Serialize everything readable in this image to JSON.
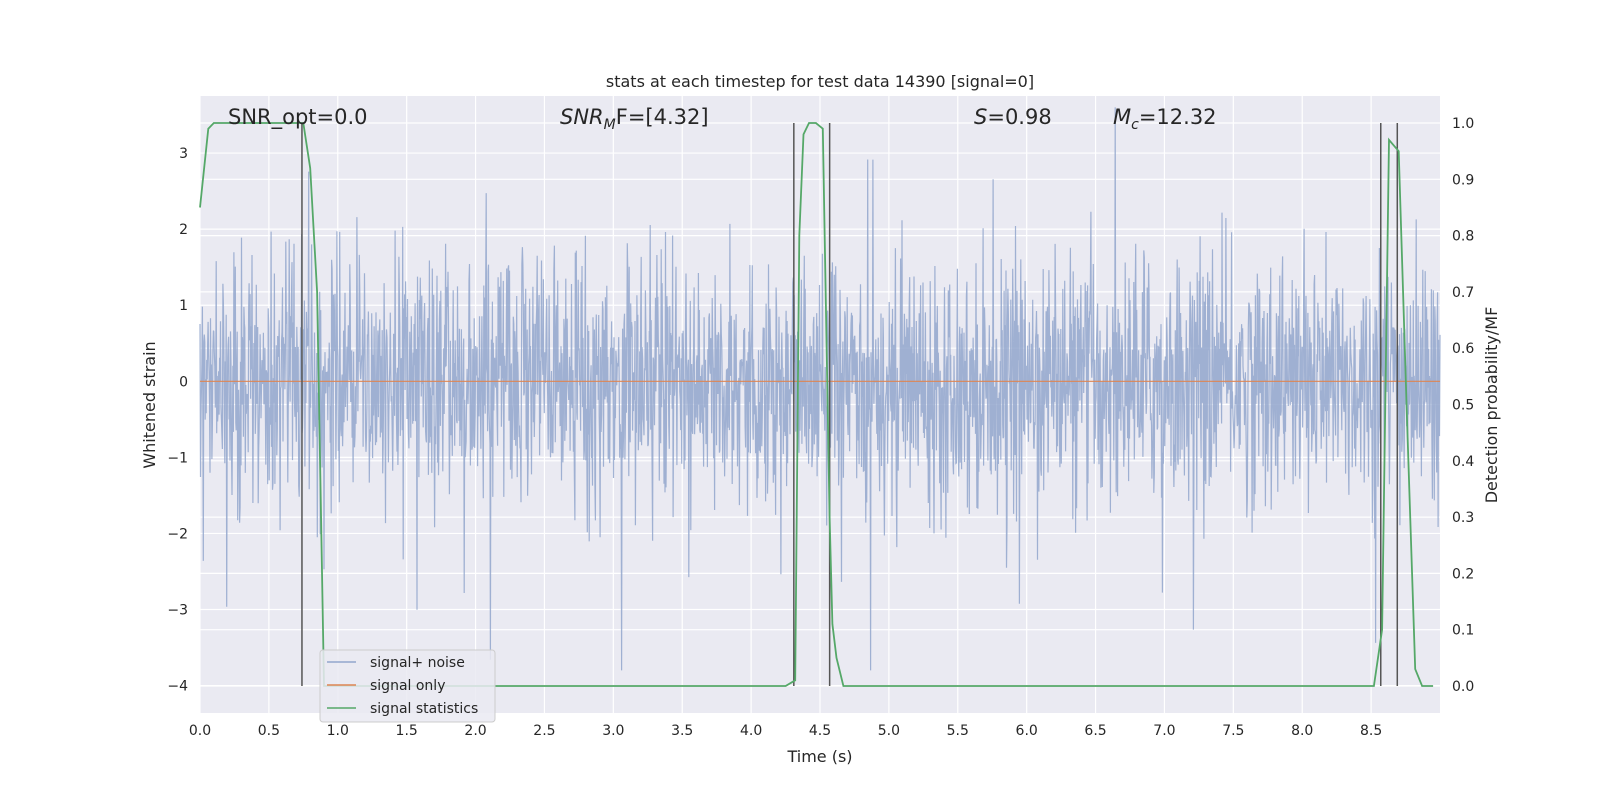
{
  "chart_data": {
    "type": "line",
    "title": "stats at each timestep for test data 14390 [signal=0]",
    "xlabel": "Time (s)",
    "ylabel_left": "Whitened strain",
    "ylabel_right": "Detection probability/MF",
    "xlim": [
      0.0,
      9.0
    ],
    "ylim_left": [
      -4.36,
      3.75
    ],
    "ylim_right": [
      -0.048,
      1.048
    ],
    "xticks": [
      "0.0",
      "0.5",
      "1.0",
      "1.5",
      "2.0",
      "2.5",
      "3.0",
      "3.5",
      "4.0",
      "4.5",
      "5.0",
      "5.5",
      "6.0",
      "6.5",
      "7.0",
      "7.5",
      "8.0",
      "8.5"
    ],
    "yticks_left": [
      "3",
      "2",
      "1",
      "0",
      "−1",
      "−2",
      "−3",
      "−4"
    ],
    "yticks_right": [
      "1.0",
      "0.9",
      "0.8",
      "0.7",
      "0.6",
      "0.5",
      "0.4",
      "0.3",
      "0.2",
      "0.1",
      "0.0"
    ],
    "grid": true,
    "legend_placement": "lower-left",
    "annotations": {
      "snr_opt": "SNR_opt=0.0",
      "snr_mf_label": "SNR",
      "snr_mf_sub": "M",
      "snr_mf_rest": "F=[4.32]",
      "s_label": "S",
      "s_value": "=0.98",
      "mc_label": "M",
      "mc_sub": "c",
      "mc_value": "=12.32"
    },
    "series": [
      {
        "name": "signal+ noise",
        "color": "#92a6cd",
        "noise_std": 0.78,
        "peak_clip": [
          -3.8,
          3.6
        ]
      },
      {
        "name": "signal only",
        "color": "#dd8452",
        "x": [
          0.0,
          9.0
        ],
        "y": [
          0.0,
          0.0
        ]
      },
      {
        "name": "signal statistics",
        "color": "#55a868",
        "axis": "right",
        "x": [
          0.0,
          0.06,
          0.1,
          0.15,
          0.6,
          0.7,
          0.75,
          0.8,
          0.85,
          0.9,
          1.0,
          2.0,
          3.0,
          4.0,
          4.25,
          4.32,
          4.35,
          4.38,
          4.42,
          4.47,
          4.52,
          4.57,
          4.59,
          4.62,
          4.67,
          5.0,
          6.0,
          7.0,
          8.0,
          8.52,
          8.58,
          8.63,
          8.7,
          8.76,
          8.82,
          8.87,
          8.95
        ],
        "y": [
          0.85,
          0.99,
          1.0,
          1.0,
          1.0,
          1.0,
          1.0,
          0.92,
          0.7,
          0.0,
          0.0,
          0.0,
          0.0,
          0.0,
          0.0,
          0.01,
          0.8,
          0.98,
          1.0,
          1.0,
          0.99,
          0.3,
          0.11,
          0.05,
          0.0,
          0.0,
          0.0,
          0.0,
          0.0,
          0.0,
          0.1,
          0.97,
          0.95,
          0.48,
          0.03,
          0.0,
          0.0
        ]
      }
    ],
    "vlines": [
      0.74,
      4.31,
      4.57,
      8.57,
      8.69
    ],
    "vline_color": "#555555"
  }
}
